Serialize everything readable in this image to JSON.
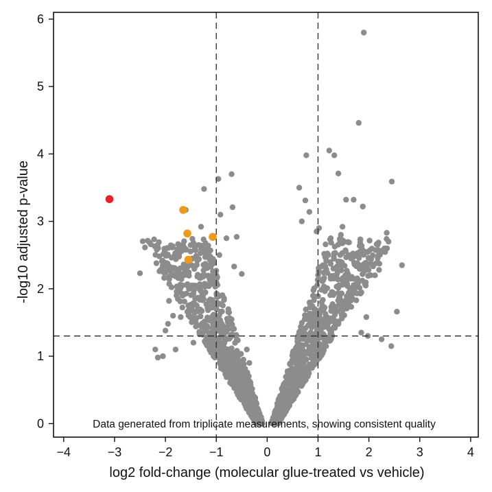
{
  "chart_data": {
    "type": "scatter",
    "title": "",
    "xlabel": "log2 fold-change (molecular glue-treated vs vehicle)",
    "ylabel": "-log10 adjusted p-value",
    "xlim": [
      -4.2,
      4.15
    ],
    "ylim": [
      -0.2,
      6.1
    ],
    "xticks": [
      -4,
      -3,
      -2,
      -1,
      0,
      1,
      2,
      3,
      4
    ],
    "yticks": [
      0,
      1,
      2,
      3,
      4,
      5,
      6
    ],
    "xtick_labels": [
      "−4",
      "−3",
      "−2",
      "−1",
      "0",
      "1",
      "2",
      "3",
      "4"
    ],
    "ytick_labels": [
      "0",
      "1",
      "2",
      "3",
      "4",
      "5",
      "6"
    ],
    "thresholds": {
      "fold_change": [
        -1,
        1
      ],
      "p_value": 1.3
    },
    "grid": false,
    "annotation": "Data generated from triplicate measurements, showing consistent quality",
    "colors": {
      "background_points": "#8c8c8c",
      "moderate_hits": "#f09a1a",
      "top_hit": "#e8202a",
      "threshold_lines": "#333333"
    },
    "series": [
      {
        "color": "#8c8c8c",
        "x": [
          1.9,
          1.8,
          1.22,
          1.32,
          0.77,
          2.45,
          1.4,
          0.63,
          1.55,
          0.75,
          1.7,
          1.88,
          0.83,
          0.68,
          1.48,
          1.02,
          0.97,
          2.35,
          2.65,
          1.82,
          1.6,
          2.2,
          2.12,
          1.45,
          1.25,
          2.55,
          1.95,
          1.98,
          2.44,
          2.25,
          1.85,
          -0.7,
          -0.68,
          -0.96,
          -0.92,
          -0.6,
          -0.8,
          -0.94,
          -1.24,
          -1.3,
          -1.6,
          -1.47,
          -0.65,
          -0.5,
          -1.2,
          -1.05,
          -1.62,
          -1.9,
          -2.0,
          -2.2,
          -2.5,
          -1.95,
          -1.93,
          -1.7,
          -1.55,
          -1.75,
          -1.25,
          -2.05,
          -2.15,
          -1.85,
          -1.8,
          -1.45,
          -0.35,
          -0.4
        ],
        "y": [
          5.8,
          4.46,
          4.05,
          3.98,
          3.98,
          3.59,
          3.71,
          3.5,
          3.32,
          3.31,
          3.32,
          3.22,
          3.14,
          3.0,
          2.92,
          2.9,
          2.85,
          2.83,
          2.35,
          2.55,
          2.5,
          2.28,
          2.2,
          2.8,
          2.75,
          1.66,
          1.58,
          1.3,
          1.15,
          1.25,
          1.35,
          3.7,
          3.21,
          3.63,
          3.1,
          2.77,
          2.75,
          2.5,
          3.48,
          2.92,
          3.17,
          2.74,
          2.33,
          2.22,
          2.59,
          2.38,
          2.58,
          2.26,
          1.38,
          1.1,
          2.23,
          1.48,
          1.82,
          1.58,
          1.75,
          1.97,
          2.05,
          1.0,
          0.98,
          1.6,
          1.1,
          1.2,
          0.9,
          1.1
        ]
      },
      {
        "color": "#f09a1a",
        "x": [
          -1.65,
          -1.57,
          -1.55,
          -1.07
        ],
        "y": [
          3.17,
          2.82,
          2.43,
          2.77
        ]
      },
      {
        "color": "#e8202a",
        "x": [
          -3.1
        ],
        "y": [
          3.33
        ]
      }
    ]
  }
}
